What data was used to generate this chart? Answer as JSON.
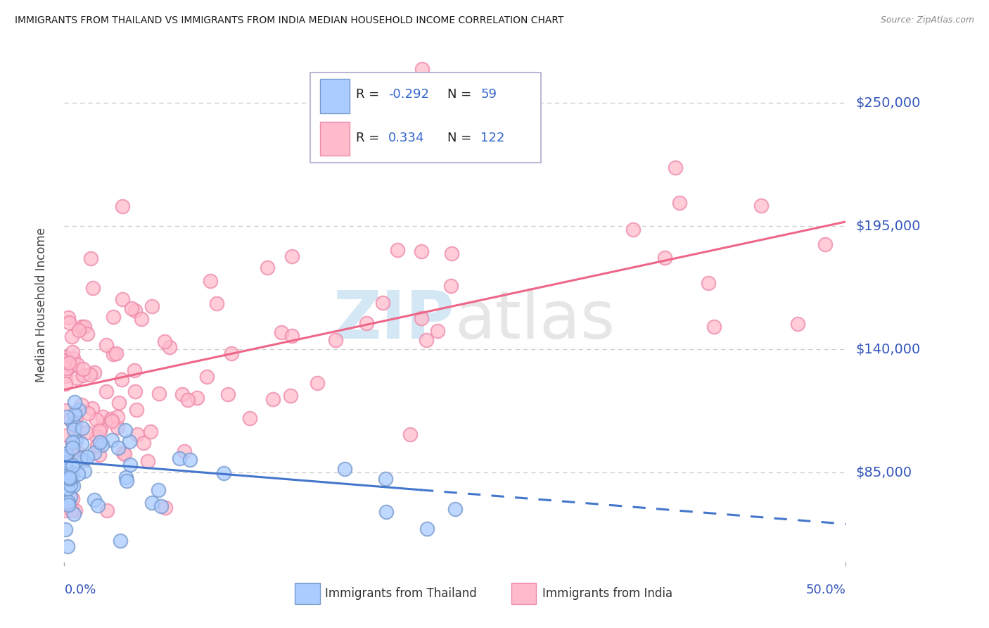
{
  "title": "IMMIGRANTS FROM THAILAND VS IMMIGRANTS FROM INDIA MEDIAN HOUSEHOLD INCOME CORRELATION CHART",
  "source": "Source: ZipAtlas.com",
  "ylabel": "Median Household Income",
  "y_ticks": [
    85000,
    140000,
    195000,
    250000
  ],
  "y_tick_labels": [
    "$85,000",
    "$140,000",
    "$195,000",
    "$250,000"
  ],
  "x_min": 0.0,
  "x_max": 0.5,
  "y_min": 45000,
  "y_max": 275000,
  "background_color": "#ffffff",
  "grid_color": "#cccccc",
  "title_color": "#1a1a1a",
  "axis_label_color": "#3355bb",
  "thailand_color": "#aaccff",
  "thailand_edge": "#7799cc",
  "india_color": "#ffbbcc",
  "india_edge": "#ee88aa",
  "thailand_line_color": "#4477cc",
  "india_line_color": "#ee6688",
  "thailand_R": -0.292,
  "thailand_N": 59,
  "india_R": 0.334,
  "india_N": 122,
  "legend_color": "#3366cc",
  "legend_neg_color": "#3366cc",
  "watermark_zip_color": "#b8d8ee",
  "watermark_atlas_color": "#c8c8c8"
}
